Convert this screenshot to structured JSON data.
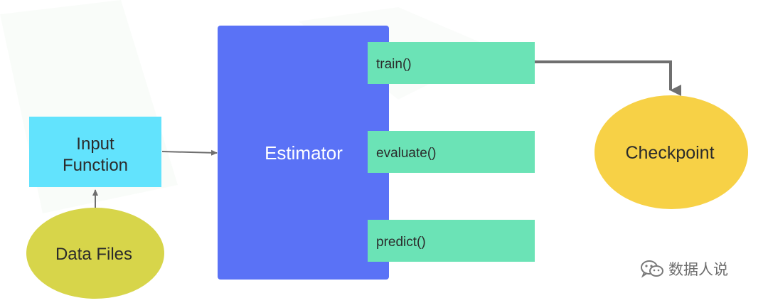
{
  "nodes": {
    "input_function": {
      "label_line1": "Input",
      "label_line2": "Function"
    },
    "data_files": {
      "label": "Data Files"
    },
    "estimator": {
      "label": "Estimator"
    },
    "checkpoint": {
      "label": "Checkpoint"
    }
  },
  "methods": [
    {
      "label": "train()"
    },
    {
      "label": "evaluate()"
    },
    {
      "label": "predict()"
    }
  ],
  "watermark": {
    "icon": "wechat-icon",
    "text": "数据人说"
  },
  "colors": {
    "input_function": "#62e3fd",
    "data_files": "#d7d54a",
    "estimator": "#5a72f6",
    "method_box": "#6be3b6",
    "checkpoint": "#f7d146",
    "arrow": "#6f6f6f"
  }
}
